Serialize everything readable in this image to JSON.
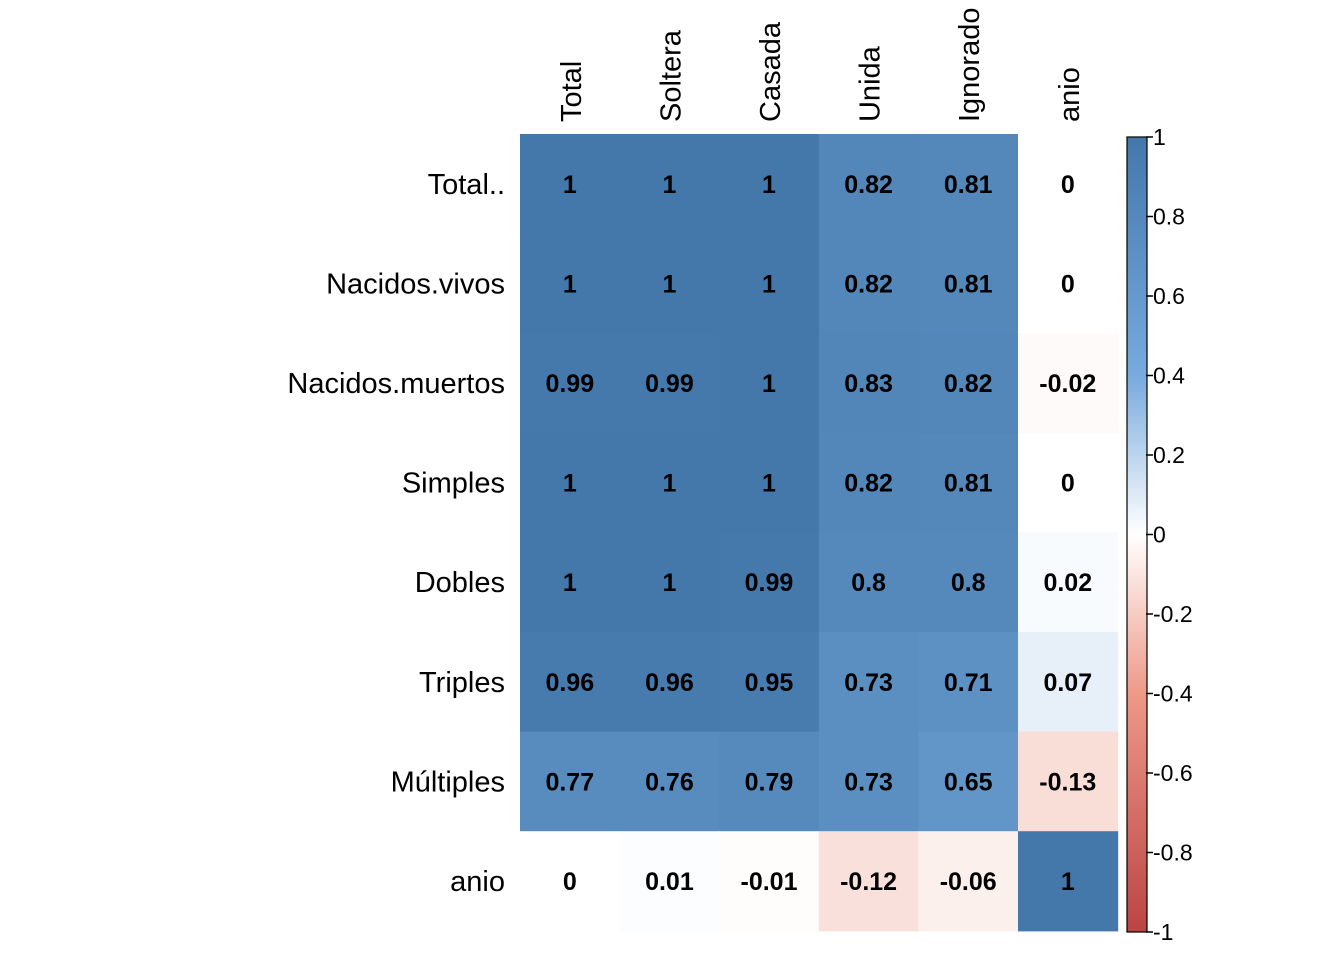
{
  "chart_data": {
    "type": "heatmap",
    "columns": [
      "Total",
      "Soltera",
      "Casada",
      "Unida",
      "Ignorado",
      "anio"
    ],
    "rows": [
      "Total..",
      "Nacidos.vivos",
      "Nacidos.muertos",
      "Simples",
      "Dobles",
      "Triples",
      "Múltiples",
      "anio"
    ],
    "values": [
      [
        1,
        1,
        1,
        0.82,
        0.81,
        0
      ],
      [
        1,
        1,
        1,
        0.82,
        0.81,
        0
      ],
      [
        0.99,
        0.99,
        1,
        0.83,
        0.82,
        -0.02
      ],
      [
        1,
        1,
        1,
        0.82,
        0.81,
        0
      ],
      [
        1,
        1,
        0.99,
        0.8,
        0.8,
        0.02
      ],
      [
        0.96,
        0.96,
        0.95,
        0.73,
        0.71,
        0.07
      ],
      [
        0.77,
        0.76,
        0.79,
        0.73,
        0.65,
        -0.13
      ],
      [
        0,
        0.01,
        -0.01,
        -0.12,
        -0.06,
        1
      ]
    ],
    "value_labels": [
      [
        "1",
        "1",
        "1",
        "0.82",
        "0.81",
        "0"
      ],
      [
        "1",
        "1",
        "1",
        "0.82",
        "0.81",
        "0"
      ],
      [
        "0.99",
        "0.99",
        "1",
        "0.83",
        "0.82",
        "-0.02"
      ],
      [
        "1",
        "1",
        "1",
        "0.82",
        "0.81",
        "0"
      ],
      [
        "1",
        "1",
        "0.99",
        "0.8",
        "0.8",
        "0.02"
      ],
      [
        "0.96",
        "0.96",
        "0.95",
        "0.73",
        "0.71",
        "0.07"
      ],
      [
        "0.77",
        "0.76",
        "0.79",
        "0.73",
        "0.65",
        "-0.13"
      ],
      [
        "0",
        "0.01",
        "-0.01",
        "-0.12",
        "-0.06",
        "1"
      ]
    ],
    "colorbar": {
      "range": [
        -1,
        1
      ],
      "ticks": [
        1,
        0.8,
        0.6,
        0.4,
        0.2,
        0,
        -0.2,
        -0.4,
        -0.6,
        -0.8,
        -1
      ],
      "tick_labels": [
        "1",
        "0.8",
        "0.6",
        "0.4",
        "0.2",
        "0",
        "-0.2",
        "-0.4",
        "-0.6",
        "-0.8",
        "-1"
      ]
    },
    "colors": {
      "positive": "#4477AA",
      "zero": "#FFFFFF",
      "negative": "#BB4444"
    },
    "title": "",
    "xlabel": "",
    "ylabel": ""
  }
}
